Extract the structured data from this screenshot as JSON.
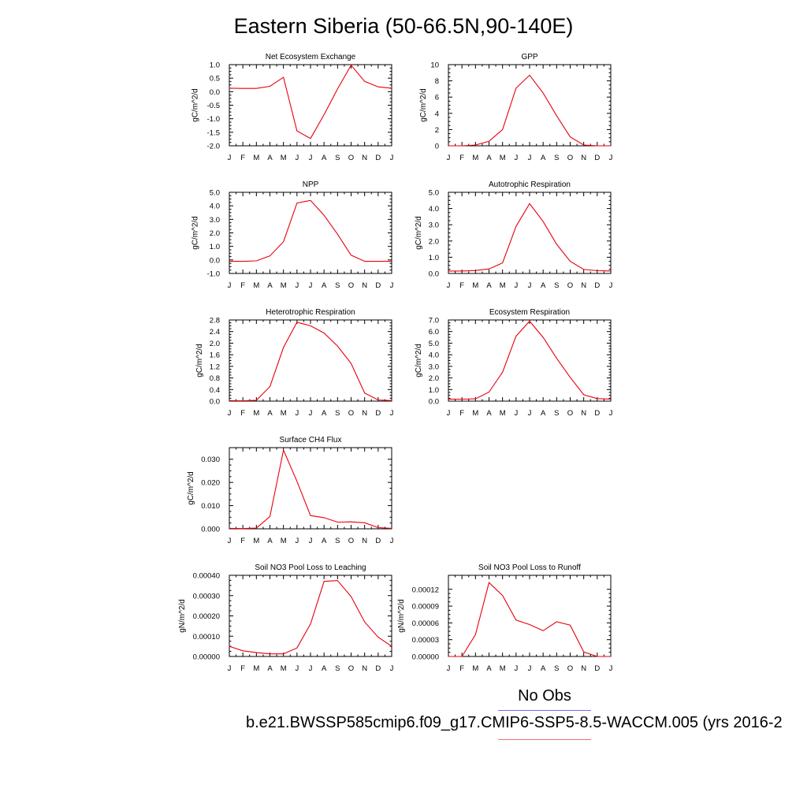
{
  "figure": {
    "title": "Eastern Siberia (50-66.5N,90-140E)",
    "line_color": "#e8000b",
    "legend": {
      "obs_label": "No Obs",
      "obs_color": "#6f6fe6",
      "case_label": "b.e21.BWSSP585cmip6.f09_g17.CMIP6-SSP5-8.5-WACCM.005 (yrs 2016-2",
      "case_color": "#f07070"
    }
  },
  "chart_data": [
    {
      "type": "line",
      "title": "Net Ecosystem Exchange",
      "ylabel": "gC/m^2/d",
      "categories": [
        "J",
        "F",
        "M",
        "A",
        "M",
        "J",
        "J",
        "A",
        "S",
        "O",
        "N",
        "D",
        "J"
      ],
      "ylim": [
        -2.0,
        1.0
      ],
      "yticks": [
        -2.0,
        -1.5,
        -1.0,
        -0.5,
        0.0,
        0.5,
        1.0
      ],
      "ytick_labels": [
        "-2.0",
        "-1.5",
        "-1.0",
        "-0.5",
        "0.0",
        "0.5",
        "1.0"
      ],
      "values": [
        0.13,
        0.12,
        0.12,
        0.2,
        0.53,
        -1.45,
        -1.73,
        -0.85,
        0.1,
        0.98,
        0.38,
        0.18,
        0.13
      ]
    },
    {
      "type": "line",
      "title": "GPP",
      "ylabel": "gC/m^2/d",
      "categories": [
        "J",
        "F",
        "M",
        "A",
        "M",
        "J",
        "J",
        "A",
        "S",
        "O",
        "N",
        "D",
        "J"
      ],
      "ylim": [
        0,
        10
      ],
      "yticks": [
        0,
        2,
        4,
        6,
        8,
        10
      ],
      "ytick_labels": [
        "0",
        "2",
        "4",
        "6",
        "8",
        "10"
      ],
      "values": [
        0.0,
        0.0,
        0.1,
        0.55,
        2.0,
        7.1,
        8.7,
        6.5,
        3.7,
        1.1,
        0.1,
        0.0,
        0.0
      ]
    },
    {
      "type": "line",
      "title": "NPP",
      "ylabel": "gC/m^2/d",
      "categories": [
        "J",
        "F",
        "M",
        "A",
        "M",
        "J",
        "J",
        "A",
        "S",
        "O",
        "N",
        "D",
        "J"
      ],
      "ylim": [
        -1.0,
        5.0
      ],
      "yticks": [
        -1.0,
        0.0,
        1.0,
        2.0,
        3.0,
        4.0,
        5.0
      ],
      "ytick_labels": [
        "-1.0",
        "0.0",
        "1.0",
        "2.0",
        "3.0",
        "4.0",
        "5.0"
      ],
      "values": [
        -0.1,
        -0.1,
        -0.07,
        0.3,
        1.35,
        4.2,
        4.4,
        3.3,
        1.9,
        0.35,
        -0.1,
        -0.1,
        -0.1
      ]
    },
    {
      "type": "line",
      "title": "Autotrophic Respiration",
      "ylabel": "gC/m^2/d",
      "categories": [
        "J",
        "F",
        "M",
        "A",
        "M",
        "J",
        "J",
        "A",
        "S",
        "O",
        "N",
        "D",
        "J"
      ],
      "ylim": [
        0,
        5.0
      ],
      "yticks": [
        0,
        1.0,
        2.0,
        3.0,
        4.0,
        5.0
      ],
      "ytick_labels": [
        "0.0",
        "1.0",
        "2.0",
        "3.0",
        "4.0",
        "5.0"
      ],
      "values": [
        0.15,
        0.15,
        0.18,
        0.28,
        0.65,
        2.9,
        4.3,
        3.2,
        1.8,
        0.75,
        0.25,
        0.17,
        0.15
      ]
    },
    {
      "type": "line",
      "title": "Heterotrophic Respiration",
      "ylabel": "gC/m^2/d",
      "categories": [
        "J",
        "F",
        "M",
        "A",
        "M",
        "J",
        "J",
        "A",
        "S",
        "O",
        "N",
        "D",
        "J"
      ],
      "ylim": [
        0,
        2.8
      ],
      "yticks": [
        0,
        0.4,
        0.8,
        1.2,
        1.6,
        2.0,
        2.4,
        2.8
      ],
      "ytick_labels": [
        "0.0",
        "0.4",
        "0.8",
        "1.2",
        "1.6",
        "2.0",
        "2.4",
        "2.8"
      ],
      "values": [
        0.02,
        0.01,
        0.03,
        0.5,
        1.85,
        2.72,
        2.6,
        2.35,
        1.9,
        1.3,
        0.28,
        0.04,
        0.02
      ]
    },
    {
      "type": "line",
      "title": "Ecosystem Respiration",
      "ylabel": "gC/m^2/d",
      "categories": [
        "J",
        "F",
        "M",
        "A",
        "M",
        "J",
        "J",
        "A",
        "S",
        "O",
        "N",
        "D",
        "J"
      ],
      "ylim": [
        0,
        7.0
      ],
      "yticks": [
        0,
        1.0,
        2.0,
        3.0,
        4.0,
        5.0,
        6.0,
        7.0
      ],
      "ytick_labels": [
        "0.0",
        "1.0",
        "2.0",
        "3.0",
        "4.0",
        "5.0",
        "6.0",
        "7.0"
      ],
      "values": [
        0.18,
        0.17,
        0.2,
        0.78,
        2.5,
        5.6,
        6.9,
        5.5,
        3.7,
        2.05,
        0.55,
        0.22,
        0.18
      ]
    },
    {
      "type": "line",
      "title": "Surface CH4 Flux",
      "ylabel": "gC/m^2/d",
      "categories": [
        "J",
        "F",
        "M",
        "A",
        "M",
        "J",
        "J",
        "A",
        "S",
        "O",
        "N",
        "D",
        "J"
      ],
      "ylim": [
        0,
        0.035
      ],
      "yticks": [
        0,
        0.01,
        0.02,
        0.03
      ],
      "ytick_labels": [
        "0.000",
        "0.010",
        "0.020",
        "0.030"
      ],
      "values": [
        0.0002,
        0.0001,
        0.0003,
        0.0053,
        0.0339,
        0.0205,
        0.0057,
        0.0048,
        0.0029,
        0.003,
        0.0026,
        0.0005,
        0.0002
      ]
    },
    {
      "type": "line",
      "title": "Soil NO3 Pool Loss to Leaching",
      "ylabel": "gN/m^2/d",
      "categories": [
        "J",
        "F",
        "M",
        "A",
        "M",
        "J",
        "J",
        "A",
        "S",
        "O",
        "N",
        "D",
        "J"
      ],
      "ylim": [
        0,
        0.0004
      ],
      "yticks": [
        0,
        0.0001,
        0.0002,
        0.0003,
        0.0004
      ],
      "ytick_labels": [
        "0.00000",
        "0.00010",
        "0.00020",
        "0.00030",
        "0.00040"
      ],
      "values": [
        5e-05,
        2.8e-05,
        1.9e-05,
        1.3e-05,
        1.3e-05,
        4.2e-05,
        0.00016,
        0.00037,
        0.000374,
        0.000295,
        0.00017,
        9.5e-05,
        5e-05
      ]
    },
    {
      "type": "line",
      "title": "Soil NO3 Pool Loss to Runoff",
      "ylabel": "gN/m^2/d",
      "categories": [
        "J",
        "F",
        "M",
        "A",
        "M",
        "J",
        "J",
        "A",
        "S",
        "O",
        "N",
        "D",
        "J"
      ],
      "ylim": [
        0,
        0.000145
      ],
      "yticks": [
        0,
        3e-05,
        6e-05,
        9e-05,
        0.00012
      ],
      "ytick_labels": [
        "0.00000",
        "0.00003",
        "0.00006",
        "0.00009",
        "0.00012"
      ],
      "values": [
        0.0,
        0.0,
        3.9e-05,
        0.000132,
        0.000109,
        6.5e-05,
        5.7e-05,
        4.6e-05,
        6.2e-05,
        5.6e-05,
        8e-06,
        0.0,
        0.0
      ]
    }
  ]
}
